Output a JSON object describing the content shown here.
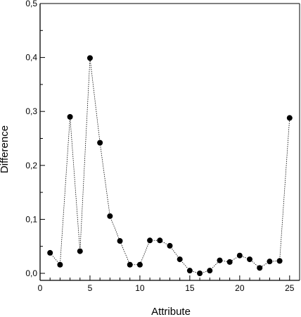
{
  "chart_data": {
    "type": "line",
    "xlabel": "Attribute",
    "ylabel": "Difference",
    "xlim": [
      0,
      26
    ],
    "ylim": [
      -0.02,
      0.5
    ],
    "x_ticks": [
      0,
      5,
      10,
      15,
      20,
      25
    ],
    "x_tick_labels": [
      "0",
      "5",
      "10",
      "15",
      "20",
      "25"
    ],
    "y_ticks": [
      0.0,
      0.1,
      0.2,
      0.3,
      0.4,
      0.5
    ],
    "y_tick_labels": [
      "0,0",
      "0,1",
      "0,2",
      "0,3",
      "0,4",
      "0,5"
    ],
    "grid": false,
    "marker": "filled-circle",
    "line_style": "dotted",
    "series": [
      {
        "x": [
          1,
          2,
          3,
          4,
          5,
          6,
          7,
          8,
          9,
          10,
          11,
          12,
          13,
          14,
          15,
          16,
          17,
          18,
          19,
          20,
          21,
          22,
          23,
          24,
          25
        ],
        "values": [
          0.038,
          0.016,
          0.29,
          0.041,
          0.399,
          0.242,
          0.106,
          0.06,
          0.016,
          0.016,
          0.061,
          0.061,
          0.051,
          0.026,
          0.005,
          0.0,
          0.005,
          0.024,
          0.021,
          0.033,
          0.026,
          0.01,
          0.022,
          0.023,
          0.288
        ]
      }
    ],
    "colors": {
      "axis": "#000000",
      "line": "#000000",
      "marker": "#000000"
    }
  }
}
